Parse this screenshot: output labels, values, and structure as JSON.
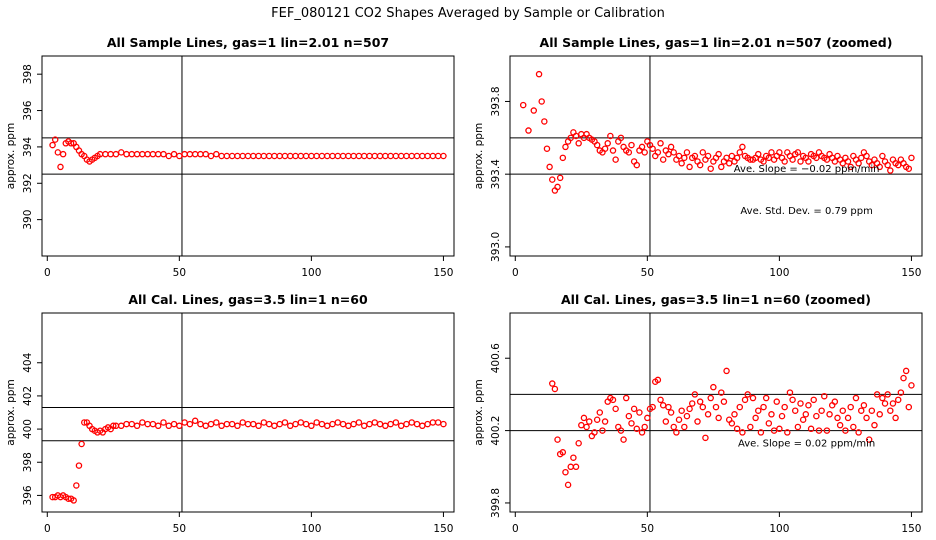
{
  "figure_title": "FEF_080121  CO2 Shapes Averaged by Sample or Calibration",
  "chart_data": [
    {
      "id": "p1",
      "type": "scatter",
      "title": "All Sample Lines, gas=1 lin=2.01 n=507",
      "xlabel": "",
      "ylabel": "approx. ppm",
      "xlim": [
        -2,
        154
      ],
      "ylim": [
        388,
        399
      ],
      "xticks": [
        0,
        50,
        100,
        150
      ],
      "xtick_labels": [
        "0",
        "50",
        "100",
        "150"
      ],
      "yticks": [
        390,
        392,
        394,
        396,
        398
      ],
      "ytick_labels": [
        "390",
        "392",
        "394",
        "396",
        "398"
      ],
      "hlines": [
        394.5,
        392.5
      ],
      "vline": 51,
      "marker_color": "#ff0000",
      "x": [
        2,
        3,
        4,
        5,
        6,
        7,
        8,
        9,
        10,
        11,
        12,
        13,
        14,
        15,
        16,
        17,
        18,
        19,
        20,
        22,
        24,
        26,
        28,
        30,
        32,
        34,
        36,
        38,
        40,
        42,
        44,
        46,
        48,
        50,
        52,
        54,
        56,
        58,
        60,
        62,
        64,
        66,
        68,
        70,
        72,
        74,
        76,
        78,
        80,
        82,
        84,
        86,
        88,
        90,
        92,
        94,
        96,
        98,
        100,
        102,
        104,
        106,
        108,
        110,
        112,
        114,
        116,
        118,
        120,
        122,
        124,
        126,
        128,
        130,
        132,
        134,
        136,
        138,
        140,
        142,
        144,
        146,
        148,
        150
      ],
      "y": [
        394.1,
        394.4,
        393.7,
        392.9,
        393.6,
        394.2,
        394.3,
        394.2,
        394.2,
        394.0,
        393.8,
        393.6,
        393.5,
        393.3,
        393.2,
        393.3,
        393.4,
        393.5,
        393.6,
        393.6,
        393.6,
        393.6,
        393.7,
        393.6,
        393.6,
        393.6,
        393.6,
        393.6,
        393.6,
        393.6,
        393.6,
        393.5,
        393.6,
        393.5,
        393.6,
        393.6,
        393.6,
        393.6,
        393.6,
        393.5,
        393.6,
        393.5,
        393.5,
        393.5,
        393.5,
        393.5,
        393.5,
        393.5,
        393.5,
        393.5,
        393.5,
        393.5,
        393.5,
        393.5,
        393.5,
        393.5,
        393.5,
        393.5,
        393.5,
        393.5,
        393.5,
        393.5,
        393.5,
        393.5,
        393.5,
        393.5,
        393.5,
        393.5,
        393.5,
        393.5,
        393.5,
        393.5,
        393.5,
        393.5,
        393.5,
        393.5,
        393.5,
        393.5,
        393.5,
        393.5,
        393.5,
        393.5,
        393.5,
        393.5
      ]
    },
    {
      "id": "p2",
      "type": "scatter",
      "title": "All Sample Lines, gas=1 lin=2.01 n=507 (zoomed)",
      "xlabel": "",
      "ylabel": "approx. ppm",
      "xlim": [
        -2,
        154
      ],
      "ylim": [
        392.95,
        394.05
      ],
      "xticks": [
        0,
        50,
        100,
        150
      ],
      "xtick_labels": [
        "0",
        "50",
        "100",
        "150"
      ],
      "yticks": [
        393.0,
        393.4,
        393.8
      ],
      "ytick_labels": [
        "393.0",
        "393.4",
        "393.8"
      ],
      "hlines": [
        393.6,
        393.4
      ],
      "vline": 51,
      "marker_color": "#ff0000",
      "annotations": [
        "Ave. Slope =  −0.02  ppm/min",
        "Ave. Std. Dev. =  0.79  ppm"
      ],
      "x": [
        3,
        5,
        7,
        9,
        10,
        11,
        12,
        13,
        14,
        15,
        16,
        17,
        18,
        19,
        20,
        21,
        22,
        23,
        24,
        25,
        26,
        27,
        28,
        29,
        30,
        31,
        32,
        33,
        34,
        35,
        36,
        37,
        38,
        39,
        40,
        41,
        42,
        43,
        44,
        45,
        46,
        47,
        48,
        49,
        50,
        51,
        52,
        53,
        54,
        55,
        56,
        57,
        58,
        59,
        60,
        61,
        62,
        63,
        64,
        65,
        66,
        67,
        68,
        69,
        70,
        71,
        72,
        73,
        74,
        75,
        76,
        77,
        78,
        79,
        80,
        81,
        82,
        83,
        84,
        85,
        86,
        87,
        88,
        89,
        90,
        91,
        92,
        93,
        94,
        95,
        96,
        97,
        98,
        99,
        100,
        101,
        102,
        103,
        104,
        105,
        106,
        107,
        108,
        109,
        110,
        111,
        112,
        113,
        114,
        115,
        116,
        117,
        118,
        119,
        120,
        121,
        122,
        123,
        124,
        125,
        126,
        127,
        128,
        129,
        130,
        131,
        132,
        133,
        134,
        135,
        136,
        137,
        138,
        139,
        140,
        141,
        142,
        143,
        144,
        145,
        146,
        147,
        148,
        149,
        150
      ],
      "y": [
        393.78,
        393.64,
        393.75,
        393.95,
        393.8,
        393.69,
        393.54,
        393.44,
        393.37,
        393.31,
        393.33,
        393.38,
        393.49,
        393.55,
        393.58,
        393.6,
        393.63,
        393.61,
        393.57,
        393.62,
        393.6,
        393.62,
        393.6,
        393.59,
        393.58,
        393.56,
        393.53,
        393.52,
        393.54,
        393.57,
        393.61,
        393.53,
        393.48,
        393.58,
        393.6,
        393.55,
        393.53,
        393.52,
        393.56,
        393.47,
        393.45,
        393.53,
        393.55,
        393.52,
        393.58,
        393.56,
        393.54,
        393.5,
        393.52,
        393.57,
        393.48,
        393.53,
        393.51,
        393.55,
        393.52,
        393.48,
        393.5,
        393.46,
        393.49,
        393.52,
        393.44,
        393.49,
        393.5,
        393.47,
        393.45,
        393.52,
        393.48,
        393.5,
        393.43,
        393.47,
        393.49,
        393.51,
        393.44,
        393.47,
        393.49,
        393.46,
        393.5,
        393.47,
        393.49,
        393.52,
        393.55,
        393.5,
        393.49,
        393.48,
        393.48,
        393.49,
        393.51,
        393.48,
        393.47,
        393.5,
        393.49,
        393.52,
        393.48,
        393.5,
        393.52,
        393.49,
        393.47,
        393.52,
        393.5,
        393.48,
        393.51,
        393.52,
        393.47,
        393.5,
        393.49,
        393.47,
        393.51,
        393.5,
        393.49,
        393.52,
        393.5,
        393.49,
        393.48,
        393.51,
        393.49,
        393.47,
        393.5,
        393.48,
        393.46,
        393.49,
        393.47,
        393.44,
        393.5,
        393.48,
        393.46,
        393.49,
        393.52,
        393.5,
        393.47,
        393.45,
        393.48,
        393.46,
        393.44,
        393.5,
        393.47,
        393.45,
        393.42,
        393.48,
        393.46,
        393.45,
        393.48,
        393.46,
        393.44,
        393.43,
        393.49
      ]
    },
    {
      "id": "p3",
      "type": "scatter",
      "title": "All Cal. Lines, gas=3.5 lin=1 n=60",
      "xlabel": "",
      "ylabel": "approx. ppm",
      "xlim": [
        -2,
        154
      ],
      "ylim": [
        395,
        407
      ],
      "xticks": [
        0,
        50,
        100,
        150
      ],
      "xtick_labels": [
        "0",
        "50",
        "100",
        "150"
      ],
      "yticks": [
        396,
        398,
        400,
        402,
        404
      ],
      "ytick_labels": [
        "396",
        "398",
        "400",
        "402",
        "404"
      ],
      "hlines": [
        401.3,
        399.3
      ],
      "vline": 51,
      "marker_color": "#ff0000",
      "x": [
        2,
        3,
        4,
        5,
        6,
        7,
        8,
        9,
        10,
        11,
        12,
        13,
        14,
        15,
        16,
        17,
        18,
        19,
        20,
        21,
        22,
        23,
        24,
        25,
        26,
        28,
        30,
        32,
        34,
        36,
        38,
        40,
        42,
        44,
        46,
        48,
        50,
        52,
        54,
        56,
        58,
        60,
        62,
        64,
        66,
        68,
        70,
        72,
        74,
        76,
        78,
        80,
        82,
        84,
        86,
        88,
        90,
        92,
        94,
        96,
        98,
        100,
        102,
        104,
        106,
        108,
        110,
        112,
        114,
        116,
        118,
        120,
        122,
        124,
        126,
        128,
        130,
        132,
        134,
        136,
        138,
        140,
        142,
        144,
        146,
        148,
        150
      ],
      "y": [
        395.9,
        395.9,
        396.0,
        395.9,
        396.0,
        395.9,
        395.8,
        395.8,
        395.7,
        396.6,
        397.8,
        399.1,
        400.4,
        400.4,
        400.2,
        400.0,
        399.9,
        399.8,
        399.9,
        399.8,
        400.0,
        400.1,
        400.0,
        400.2,
        400.2,
        400.2,
        400.3,
        400.3,
        400.2,
        400.4,
        400.3,
        400.3,
        400.2,
        400.4,
        400.2,
        400.3,
        400.2,
        400.4,
        400.3,
        400.5,
        400.3,
        400.2,
        400.3,
        400.4,
        400.2,
        400.3,
        400.3,
        400.2,
        400.4,
        400.3,
        400.3,
        400.2,
        400.4,
        400.3,
        400.2,
        400.3,
        400.4,
        400.2,
        400.3,
        400.4,
        400.3,
        400.2,
        400.4,
        400.3,
        400.2,
        400.3,
        400.4,
        400.3,
        400.2,
        400.3,
        400.4,
        400.2,
        400.3,
        400.4,
        400.3,
        400.2,
        400.3,
        400.4,
        400.2,
        400.3,
        400.4,
        400.3,
        400.2,
        400.3,
        400.4,
        400.4,
        400.3
      ]
    },
    {
      "id": "p4",
      "type": "scatter",
      "title": "All Cal. Lines, gas=3.5 lin=1 n=60 (zoomed)",
      "xlabel": "",
      "ylabel": "approx. ppm",
      "xlim": [
        -2,
        154
      ],
      "ylim": [
        399.75,
        400.85
      ],
      "xticks": [
        0,
        50,
        100,
        150
      ],
      "xtick_labels": [
        "0",
        "50",
        "100",
        "150"
      ],
      "yticks": [
        399.8,
        400.2,
        400.6
      ],
      "ytick_labels": [
        "399.8",
        "400.2",
        "400.6"
      ],
      "hlines": [
        400.4,
        400.2
      ],
      "vline": 51,
      "marker_color": "#ff0000",
      "annotations": [
        "Ave. Slope =  0.02  ppm/min"
      ],
      "x": [
        14,
        15,
        16,
        17,
        18,
        19,
        20,
        21,
        22,
        23,
        24,
        25,
        26,
        27,
        28,
        29,
        30,
        31,
        32,
        33,
        34,
        35,
        36,
        37,
        38,
        39,
        40,
        41,
        42,
        43,
        44,
        45,
        46,
        47,
        48,
        49,
        50,
        51,
        52,
        53,
        54,
        55,
        56,
        57,
        58,
        59,
        60,
        61,
        62,
        63,
        64,
        65,
        66,
        67,
        68,
        69,
        70,
        71,
        72,
        73,
        74,
        75,
        76,
        77,
        78,
        79,
        80,
        81,
        82,
        83,
        84,
        85,
        86,
        87,
        88,
        89,
        90,
        91,
        92,
        93,
        94,
        95,
        96,
        97,
        98,
        99,
        100,
        101,
        102,
        103,
        104,
        105,
        106,
        107,
        108,
        109,
        110,
        111,
        112,
        113,
        114,
        115,
        116,
        117,
        118,
        119,
        120,
        121,
        122,
        123,
        124,
        125,
        126,
        127,
        128,
        129,
        130,
        131,
        132,
        133,
        134,
        135,
        136,
        137,
        138,
        139,
        140,
        141,
        142,
        143,
        144,
        145,
        146,
        147,
        148,
        149,
        150
      ],
      "y": [
        400.46,
        400.43,
        400.15,
        400.07,
        400.08,
        399.97,
        399.9,
        400.0,
        400.05,
        400.0,
        400.13,
        400.23,
        400.27,
        400.22,
        400.25,
        400.17,
        400.19,
        400.26,
        400.3,
        400.2,
        400.25,
        400.36,
        400.38,
        400.37,
        400.32,
        400.22,
        400.2,
        400.15,
        400.38,
        400.28,
        400.24,
        400.32,
        400.21,
        400.3,
        400.19,
        400.22,
        400.27,
        400.32,
        400.33,
        400.47,
        400.48,
        400.37,
        400.34,
        400.25,
        400.33,
        400.3,
        400.22,
        400.19,
        400.26,
        400.31,
        400.22,
        400.28,
        400.32,
        400.35,
        400.4,
        400.25,
        400.36,
        400.33,
        400.16,
        400.29,
        400.38,
        400.44,
        400.33,
        400.27,
        400.41,
        400.36,
        400.53,
        400.26,
        400.24,
        400.29,
        400.21,
        400.33,
        400.19,
        400.37,
        400.4,
        400.22,
        400.38,
        400.27,
        400.31,
        400.19,
        400.33,
        400.38,
        400.24,
        400.29,
        400.2,
        400.36,
        400.21,
        400.28,
        400.33,
        400.19,
        400.41,
        400.37,
        400.31,
        400.22,
        400.35,
        400.26,
        400.29,
        400.34,
        400.21,
        400.37,
        400.28,
        400.2,
        400.31,
        400.39,
        400.2,
        400.29,
        400.34,
        400.36,
        400.27,
        400.23,
        400.31,
        400.2,
        400.27,
        400.33,
        400.22,
        400.38,
        400.19,
        400.31,
        400.34,
        400.27,
        400.15,
        400.31,
        400.23,
        400.4,
        400.29,
        400.38,
        400.35,
        400.4,
        400.31,
        400.35,
        400.27,
        400.37,
        400.41,
        400.49,
        400.53,
        400.33,
        400.45
      ]
    }
  ]
}
